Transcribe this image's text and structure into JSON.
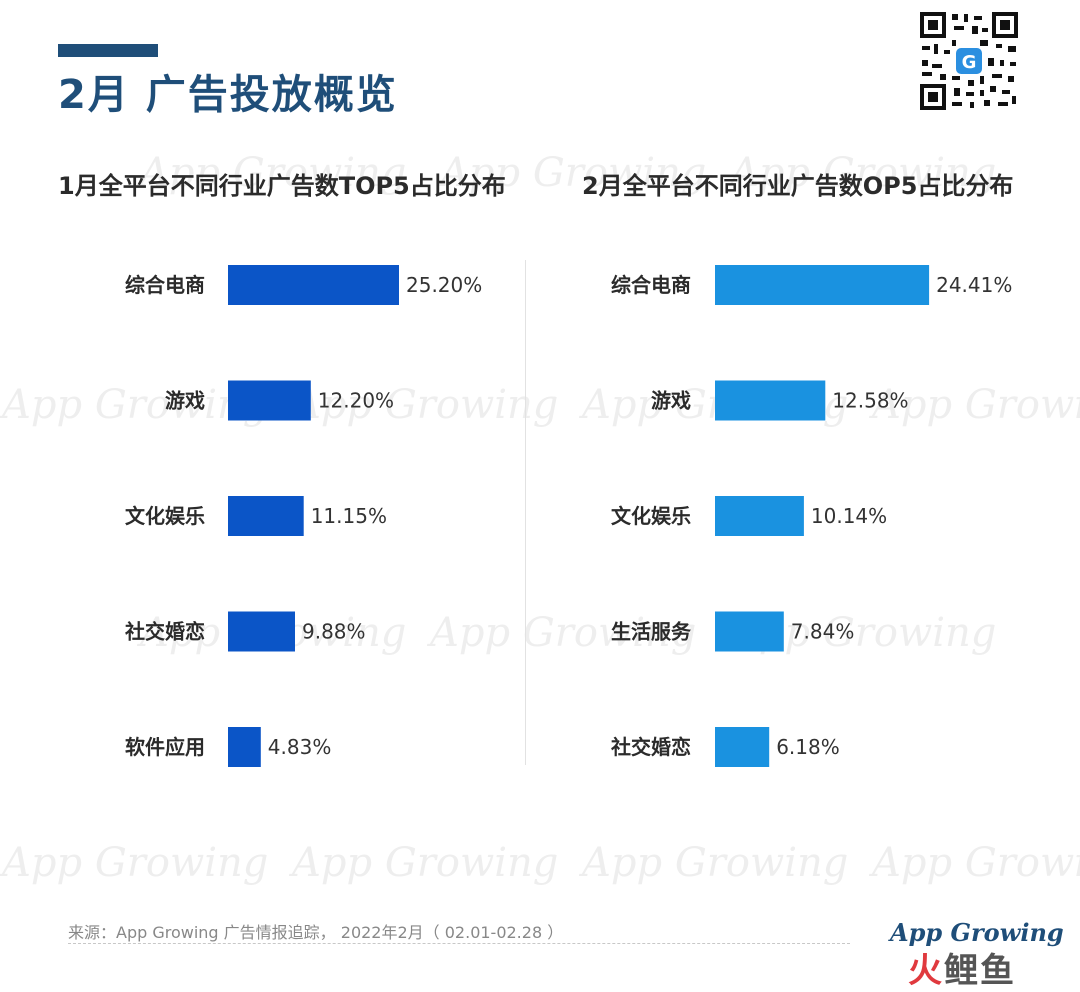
{
  "header": {
    "title": "2月 广告投放概览"
  },
  "colors": {
    "left_bar": "#0b55c7",
    "right_bar": "#1a92e0",
    "title": "#1f4e79"
  },
  "watermark": "App Growing",
  "chart_data": [
    {
      "type": "bar",
      "orientation": "horizontal",
      "title": "1月全平台不同行业广告数TOP5占比分布",
      "categories": [
        "综合电商",
        "游戏",
        "文化娱乐",
        "社交婚恋",
        "软件应用"
      ],
      "values": [
        25.2,
        12.2,
        11.15,
        9.88,
        4.83
      ],
      "value_labels": [
        "25.20%",
        "12.20%",
        "11.15%",
        "9.88%",
        "4.83%"
      ],
      "unit": "%",
      "xlim": [
        0,
        25.2
      ],
      "grid": false,
      "legend": "none"
    },
    {
      "type": "bar",
      "orientation": "horizontal",
      "title": "2月全平台不同行业广告数OP5占比分布",
      "categories": [
        "综合电商",
        "游戏",
        "文化娱乐",
        "生活服务",
        "社交婚恋"
      ],
      "values": [
        24.41,
        12.58,
        10.14,
        7.84,
        6.18
      ],
      "value_labels": [
        "24.41%",
        "12.58%",
        "10.14%",
        "7.84%",
        "6.18%"
      ],
      "unit": "%",
      "xlim": [
        0,
        25.2
      ],
      "grid": false,
      "legend": "none"
    }
  ],
  "footer": {
    "source": "来源：App Growing 广告情报追踪， 2022年2月（ 02.01-02.28 ）",
    "logo_text": "App Growing",
    "logo2_a": "火",
    "logo2_b": "鲤鱼"
  }
}
